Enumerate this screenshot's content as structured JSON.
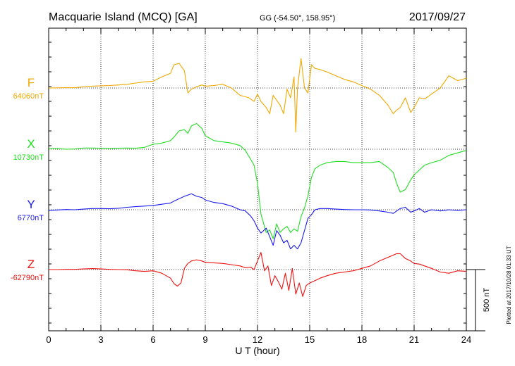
{
  "header": {
    "station": "Macquarie Island (MCQ)  [GA]",
    "coords": "GG (-54.50°, 158.95°)",
    "date": "2017/09/27"
  },
  "footer": {
    "plotted_note": "Plotted at 2017/10/28 01:33 UT",
    "scale_label": "500 nT"
  },
  "chart_data": {
    "type": "line",
    "title": "Macquarie Island (MCQ)  [GA]",
    "xlabel": "U T (hour)",
    "xlim": [
      0,
      24
    ],
    "xticks": [
      "0",
      "3",
      "6",
      "9",
      "12",
      "15",
      "18",
      "21",
      "24"
    ],
    "x_unit": "hour",
    "y_unit": "nT",
    "scale_bar_nT": 500,
    "grid": "dotted",
    "series": [
      {
        "name": "F",
        "baseline_label": "64060nT",
        "baseline": 64060,
        "color": "#f0a800",
        "x": [
          0,
          0.5,
          1,
          1.5,
          2,
          2.5,
          3,
          3.5,
          4,
          4.5,
          5,
          5.5,
          6,
          6.5,
          7,
          7.2,
          7.5,
          7.8,
          8,
          8.2,
          8.5,
          8.8,
          9,
          9.5,
          10,
          10.5,
          11,
          11.5,
          11.8,
          12,
          12.2,
          12.5,
          12.7,
          12.9,
          13.1,
          13.3,
          13.5,
          13.7,
          13.9,
          14.1,
          14.2,
          14.3,
          14.5,
          14.7,
          14.9,
          15.1,
          15.3,
          15.6,
          16,
          16.5,
          17,
          17.5,
          18,
          18.5,
          19,
          19.5,
          19.8,
          20,
          20.2,
          20.5,
          20.8,
          21,
          21.3,
          21.6,
          22,
          22.5,
          23,
          23.5,
          24
        ],
        "y": [
          64060,
          64061,
          64063,
          64062,
          64070,
          64075,
          64078,
          64080,
          64085,
          64090,
          64100,
          64110,
          64115,
          64150,
          64180,
          64250,
          64260,
          64200,
          64020,
          64050,
          64070,
          64085,
          64075,
          64080,
          64090,
          64060,
          64000,
          63980,
          63950,
          64010,
          63950,
          63900,
          63850,
          64000,
          63960,
          63920,
          63850,
          64050,
          63980,
          64150,
          63700,
          64060,
          64300,
          64060,
          64020,
          64250,
          64220,
          64210,
          64190,
          64160,
          64130,
          64110,
          64080,
          64050,
          64000,
          63920,
          63850,
          63880,
          63900,
          63980,
          63860,
          63900,
          63980,
          63970,
          64010,
          64060,
          64160,
          64120,
          64140
        ]
      },
      {
        "name": "X",
        "baseline_label": "10730nT",
        "baseline": 10730,
        "color": "#22dd22",
        "x": [
          0,
          0.5,
          1,
          1.5,
          2,
          2.5,
          3,
          3.5,
          4,
          4.5,
          5,
          5.5,
          6,
          6.5,
          7,
          7.2,
          7.5,
          7.8,
          8,
          8.2,
          8.5,
          8.8,
          9,
          9.5,
          10,
          10.5,
          11,
          11.3,
          11.6,
          11.8,
          12,
          12.2,
          12.5,
          12.7,
          12.9,
          13.1,
          13.3,
          13.5,
          13.7,
          13.9,
          14.1,
          14.3,
          14.5,
          14.7,
          14.9,
          15.1,
          15.3,
          15.6,
          16,
          16.5,
          17,
          17.5,
          18,
          18.5,
          19,
          19.5,
          19.8,
          20,
          20.2,
          20.5,
          20.8,
          21,
          21.3,
          21.6,
          22,
          22.5,
          23,
          23.5,
          24
        ],
        "y": [
          10735,
          10735,
          10730,
          10732,
          10740,
          10740,
          10738,
          10735,
          10738,
          10740,
          10738,
          10745,
          10770,
          10780,
          10800,
          10830,
          10880,
          10890,
          10860,
          10920,
          10940,
          10900,
          10840,
          10800,
          10790,
          10780,
          10760,
          10720,
          10650,
          10600,
          10450,
          10200,
          10050,
          10070,
          10000,
          10120,
          10050,
          10080,
          10100,
          10050,
          10080,
          10060,
          10180,
          10250,
          10350,
          10500,
          10570,
          10600,
          10620,
          10630,
          10630,
          10620,
          10620,
          10620,
          10630,
          10580,
          10540,
          10450,
          10380,
          10400,
          10480,
          10520,
          10560,
          10600,
          10620,
          10640,
          10680,
          10700,
          10720
        ]
      },
      {
        "name": "Y",
        "baseline_label": "6770nT",
        "baseline": 6770,
        "color": "#1a1aee",
        "x": [
          0,
          0.5,
          1,
          1.5,
          2,
          2.5,
          3,
          3.5,
          4,
          4.5,
          5,
          5.5,
          6,
          6.5,
          7,
          7.2,
          7.5,
          7.8,
          8,
          8.2,
          8.5,
          8.8,
          9,
          9.5,
          10,
          10.5,
          11,
          11.3,
          11.6,
          11.8,
          12,
          12.2,
          12.5,
          12.7,
          12.9,
          13.1,
          13.3,
          13.5,
          13.7,
          13.9,
          14.1,
          14.3,
          14.5,
          14.7,
          14.9,
          15.1,
          15.3,
          15.6,
          16,
          16.5,
          17,
          17.5,
          18,
          18.5,
          19,
          19.5,
          19.8,
          20,
          20.2,
          20.5,
          20.8,
          21,
          21.3,
          21.6,
          22,
          22.5,
          23,
          23.5,
          24
        ],
        "y": [
          6765,
          6768,
          6772,
          6770,
          6775,
          6780,
          6780,
          6778,
          6782,
          6790,
          6795,
          6800,
          6805,
          6815,
          6825,
          6840,
          6860,
          6880,
          6890,
          6900,
          6880,
          6870,
          6850,
          6830,
          6820,
          6800,
          6770,
          6760,
          6720,
          6680,
          6620,
          6580,
          6620,
          6550,
          6480,
          6600,
          6560,
          6500,
          6520,
          6450,
          6480,
          6450,
          6500,
          6600,
          6700,
          6730,
          6770,
          6780,
          6780,
          6775,
          6772,
          6770,
          6770,
          6768,
          6760,
          6750,
          6740,
          6760,
          6780,
          6790,
          6750,
          6760,
          6780,
          6750,
          6770,
          6760,
          6770,
          6765,
          6770
        ]
      },
      {
        "name": "Z",
        "baseline_label": "-62790nT",
        "baseline": -62790,
        "color": "#ee1111",
        "x": [
          0,
          0.5,
          1,
          1.5,
          2,
          2.5,
          3,
          3.5,
          4,
          4.5,
          5,
          5.5,
          6,
          6.5,
          7,
          7.2,
          7.4,
          7.6,
          7.8,
          8,
          8.2,
          8.5,
          8.8,
          9,
          9.5,
          10,
          10.5,
          11,
          11.3,
          11.6,
          11.8,
          12,
          12.2,
          12.4,
          12.6,
          12.8,
          13,
          13.2,
          13.4,
          13.6,
          13.8,
          14,
          14.2,
          14.4,
          14.6,
          14.8,
          15,
          15.3,
          15.6,
          16,
          16.5,
          17,
          17.5,
          18,
          18.5,
          19,
          19.5,
          20,
          20.2,
          20.5,
          20.8,
          21,
          21.3,
          21.6,
          22,
          22.5,
          23,
          23.5,
          24
        ],
        "y": [
          -62790,
          -62790,
          -62788,
          -62788,
          -62785,
          -62782,
          -62785,
          -62788,
          -62790,
          -62792,
          -62800,
          -62805,
          -62800,
          -62820,
          -62860,
          -62905,
          -62925,
          -62900,
          -62780,
          -62740,
          -62720,
          -62710,
          -62720,
          -62730,
          -62735,
          -62740,
          -62750,
          -62760,
          -62775,
          -62770,
          -62790,
          -62720,
          -62650,
          -62800,
          -62760,
          -62920,
          -62840,
          -62890,
          -62950,
          -62820,
          -62960,
          -62780,
          -62990,
          -62900,
          -63010,
          -62920,
          -62900,
          -62880,
          -62860,
          -62840,
          -62820,
          -62810,
          -62800,
          -62780,
          -62760,
          -62720,
          -62690,
          -62660,
          -62660,
          -62700,
          -62720,
          -62740,
          -62745,
          -62760,
          -62780,
          -62810,
          -62820,
          -62800,
          -62805
        ]
      }
    ]
  }
}
